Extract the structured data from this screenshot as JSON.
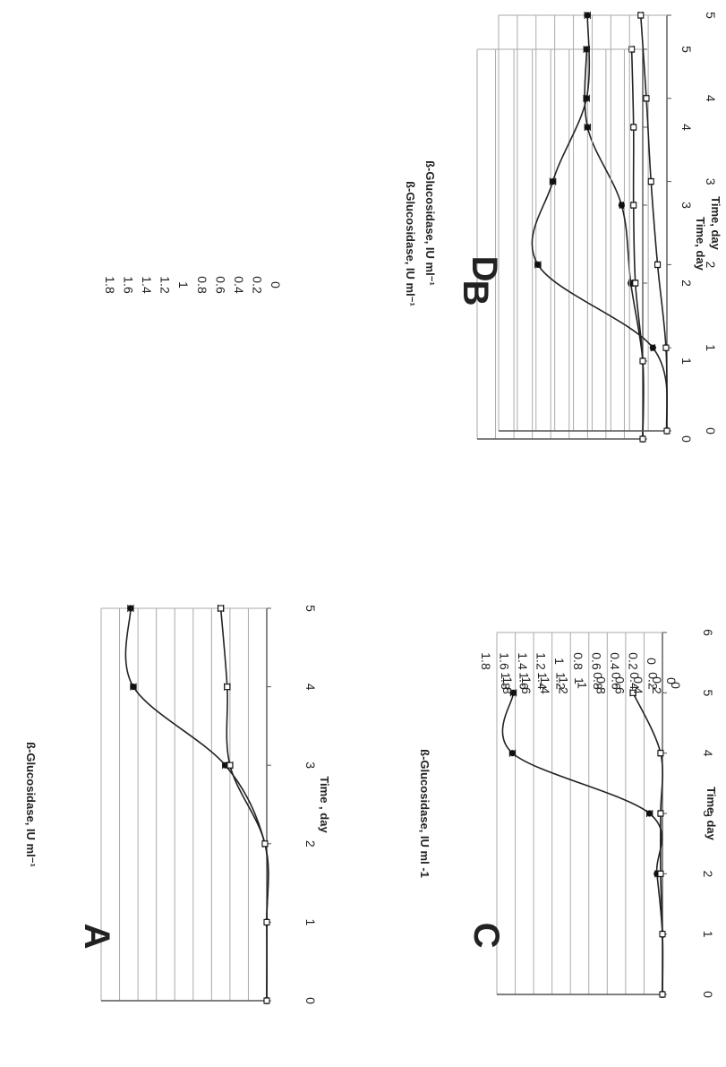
{
  "colors": {
    "line": "#222222",
    "grid": "#aaaaaa",
    "axis": "#555555",
    "marker": "#111111"
  },
  "chart_data": [
    {
      "panel": "A",
      "type": "line",
      "xlabel": "Time , day",
      "ylabel": "ß-Glucosidase, IU ml⁻¹",
      "xlim": [
        0,
        5
      ],
      "ylim": [
        0,
        1.8
      ],
      "x_ticks": [
        "0",
        "1",
        "2",
        "3",
        "4",
        "5"
      ],
      "y_ticks": [
        "0",
        "0.2",
        "0.4",
        "0.6",
        "0.8",
        "1",
        "1.2",
        "1.4",
        "1.6",
        "1.8"
      ],
      "grid": true,
      "series": [
        {
          "marker": "filled",
          "x": [
            0,
            1,
            2,
            3,
            4,
            5
          ],
          "y": [
            0,
            0,
            0.02,
            0.45,
            1.45,
            1.48
          ],
          "err": [
            0.01,
            0.01,
            0.02,
            0.03,
            0.03,
            0.03
          ]
        },
        {
          "marker": "open",
          "x": [
            0,
            1,
            2,
            3,
            4,
            5
          ],
          "y": [
            0,
            0,
            0.02,
            0.4,
            0.43,
            0.5
          ],
          "err": [
            0.01,
            0.01,
            0.02,
            0.03,
            0.03,
            0.03
          ]
        }
      ]
    },
    {
      "panel": "B",
      "type": "line",
      "xlabel": "Time, day",
      "ylabel": "ß-Glucosidase, IU ml⁻¹",
      "xlim": [
        0,
        5
      ],
      "ylim": [
        0,
        1.8
      ],
      "x_ticks": [
        "0",
        "1",
        "2",
        "3",
        "4",
        "5"
      ],
      "y_ticks": [
        "0",
        "0.2",
        "0.4",
        "0.6",
        "0.8",
        "1",
        "1.2",
        "1.4",
        "1.6",
        "1.8"
      ],
      "grid": true,
      "series": [
        {
          "marker": "filled",
          "x": [
            0,
            1,
            2,
            3,
            4,
            5
          ],
          "y": [
            0,
            0,
            0.13,
            0.23,
            0.6,
            0.61
          ],
          "err": [
            0.01,
            0.01,
            0.02,
            0.02,
            0.03,
            0.03
          ]
        },
        {
          "marker": "open",
          "x": [
            0,
            1,
            2,
            3,
            4,
            5
          ],
          "y": [
            0,
            0,
            0.08,
            0.1,
            0.1,
            0.12
          ],
          "err": [
            0.01,
            0.01,
            0.02,
            0.02,
            0.02,
            0.02
          ]
        }
      ]
    },
    {
      "panel": "C",
      "type": "line",
      "xlabel": "Time, day",
      "ylabel": "ß-Glucosidase, IU ml -1",
      "xlim": [
        0,
        6
      ],
      "ylim": [
        0,
        1.8
      ],
      "x_ticks": [
        "0",
        "1",
        "2",
        "3",
        "4",
        "5",
        "6"
      ],
      "y_ticks": [
        "0",
        "0.2",
        "0.4",
        "0.6",
        "0.8",
        "1",
        "1.2",
        "1.4",
        "1.6",
        "1.8"
      ],
      "grid": true,
      "series": [
        {
          "marker": "filled",
          "x": [
            0,
            1,
            2,
            3,
            4,
            5
          ],
          "y": [
            0,
            0,
            0.06,
            0.14,
            1.63,
            1.62
          ],
          "err": [
            0.01,
            0.01,
            0.02,
            0.03,
            0.03,
            0.03
          ]
        },
        {
          "marker": "open",
          "x": [
            0,
            1,
            2,
            3,
            4,
            5
          ],
          "y": [
            0,
            0,
            0.02,
            0.02,
            0.02,
            0.32
          ],
          "err": [
            0.01,
            0.01,
            0.02,
            0.02,
            0.02,
            0.03
          ]
        }
      ]
    },
    {
      "panel": "D",
      "type": "line",
      "xlabel": "Time, day",
      "ylabel": "ß-Glucosidase, IU ml⁻¹",
      "xlim": [
        0,
        5
      ],
      "ylim": [
        0,
        1.8
      ],
      "x_ticks": [
        "0",
        "1",
        "2",
        "3",
        "4",
        "5"
      ],
      "y_ticks": [
        "0",
        "0.2",
        "0.4",
        "0.6",
        "0.8",
        "1",
        "1.2",
        "1.4",
        "1.6",
        "1.8"
      ],
      "grid": true,
      "series": [
        {
          "marker": "filled",
          "x": [
            0,
            1,
            2,
            3,
            4,
            5
          ],
          "y": [
            0,
            0.15,
            1.38,
            1.22,
            0.86,
            0.85
          ],
          "err": [
            0.01,
            0.02,
            0.03,
            0.03,
            0.03,
            0.03
          ]
        },
        {
          "marker": "open",
          "x": [
            0,
            1,
            2,
            3,
            4,
            5
          ],
          "y": [
            0,
            0.01,
            0.1,
            0.17,
            0.22,
            0.28
          ],
          "err": [
            0.01,
            0.01,
            0.02,
            0.02,
            0.02,
            0.02
          ]
        }
      ]
    }
  ]
}
